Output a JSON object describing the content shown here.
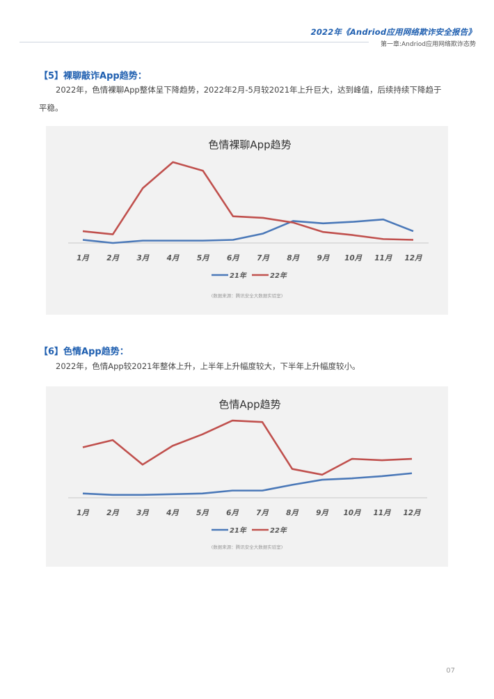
{
  "header": {
    "title": "2022年《Andriod应用网络欺诈安全报告》",
    "subtitle": "第一章:Andriod应用网络欺诈态势"
  },
  "sections": [
    {
      "title": "【5】裸聊敲诈App趋势：",
      "paragraph_line1": "2022年，色情裸聊App整体呈下降趋势，2022年2月-5月较2021年上升巨大，达到峰值，后续持续下降趋于",
      "paragraph_line2": "平稳。"
    },
    {
      "title": "【6】色情App趋势：",
      "paragraph_line1": "2022年，色情App较2021年整体上升，上半年上升幅度较大，下半年上升幅度较小。"
    }
  ],
  "chart_data": [
    {
      "type": "line",
      "title": "色情裸聊App趋势",
      "categories": [
        "1月",
        "2月",
        "3月",
        "4月",
        "5月",
        "6月",
        "7月",
        "8月",
        "9月",
        "10月",
        "11月",
        "12月"
      ],
      "series": [
        {
          "name": "21年",
          "color": "#4a78b8",
          "values": [
            4,
            0,
            3,
            3,
            3,
            4,
            12,
            28,
            25,
            27,
            30,
            15
          ]
        },
        {
          "name": "22年",
          "color": "#c0504d",
          "values": [
            15,
            11,
            70,
            103,
            92,
            34,
            32,
            26,
            14,
            10,
            5,
            4
          ]
        }
      ],
      "ylim": [
        0,
        110
      ],
      "grid": false,
      "legend": "bottom",
      "source": "(数据来源：腾讯安全大数据实验室)"
    },
    {
      "type": "line",
      "title": "色情App趋势",
      "categories": [
        "1月",
        "2月",
        "3月",
        "4月",
        "5月",
        "6月",
        "7月",
        "8月",
        "9月",
        "10月",
        "11月",
        "12月"
      ],
      "series": [
        {
          "name": "21年",
          "color": "#4a78b8",
          "values": [
            6,
            4,
            4,
            5,
            6,
            10,
            10,
            18,
            25,
            27,
            30,
            34
          ]
        },
        {
          "name": "22年",
          "color": "#c0504d",
          "values": [
            70,
            80,
            46,
            72,
            88,
            107,
            105,
            40,
            32,
            54,
            52,
            54
          ]
        }
      ],
      "ylim": [
        0,
        110
      ],
      "grid": false,
      "legend": "bottom",
      "source": "(数据来源：腾讯安全大数据实验室)"
    }
  ],
  "page_number": "07"
}
